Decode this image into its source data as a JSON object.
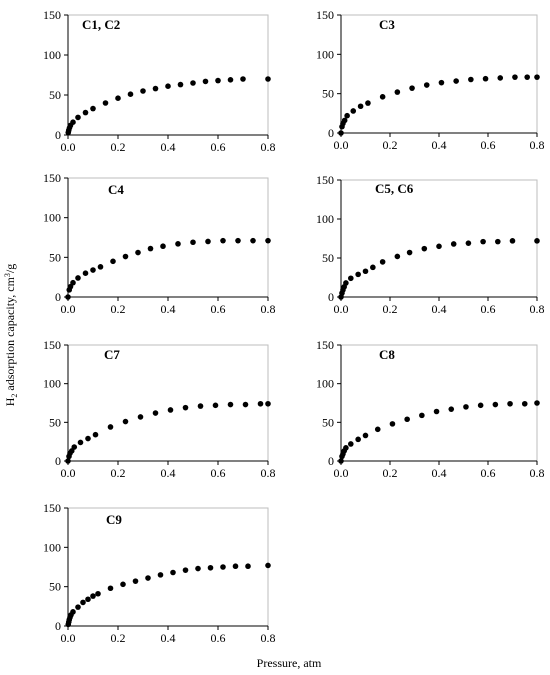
{
  "figure": {
    "ylabel_main": "H",
    "ylabel_sub": "2",
    "ylabel_rest": " adsorption capacity, cm",
    "ylabel_sup": "3",
    "ylabel_end": "/g",
    "xlabel": "Pressure, atm"
  },
  "chart_data": [
    {
      "type": "scatter",
      "title": "C1, C2",
      "xlim": [
        0,
        0.8
      ],
      "ylim": [
        0,
        150
      ],
      "xticks": [
        "0.0",
        "0.2",
        "0.4",
        "0.6",
        "0.8"
      ],
      "yticks": [
        "0",
        "50",
        "100",
        "150"
      ],
      "x": [
        0.001,
        0.003,
        0.006,
        0.01,
        0.02,
        0.04,
        0.07,
        0.1,
        0.15,
        0.2,
        0.25,
        0.3,
        0.35,
        0.4,
        0.45,
        0.5,
        0.55,
        0.6,
        0.65,
        0.7,
        0.8
      ],
      "y": [
        3,
        6,
        9,
        12,
        16,
        22,
        28,
        33,
        40,
        46,
        51,
        55,
        58,
        61,
        63,
        65,
        67,
        68,
        69,
        70,
        70
      ]
    },
    {
      "type": "scatter",
      "title": "C3",
      "xlim": [
        0,
        0.8
      ],
      "ylim": [
        0,
        150
      ],
      "xticks": [
        "0.0",
        "0.2",
        "0.4",
        "0.6",
        "0.8"
      ],
      "yticks": [
        "0",
        "50",
        "100",
        "150"
      ],
      "x": [
        0.0,
        0.004,
        0.008,
        0.015,
        0.025,
        0.05,
        0.08,
        0.11,
        0.17,
        0.23,
        0.29,
        0.35,
        0.41,
        0.47,
        0.53,
        0.59,
        0.65,
        0.71,
        0.76,
        0.8
      ],
      "y": [
        0,
        8,
        12,
        16,
        22,
        28,
        34,
        38,
        46,
        52,
        57,
        61,
        64,
        66,
        68,
        69,
        70,
        71,
        71,
        71
      ]
    },
    {
      "type": "scatter",
      "title": "C4",
      "xlim": [
        0,
        0.8
      ],
      "ylim": [
        0,
        150
      ],
      "xticks": [
        "0.0",
        "0.2",
        "0.4",
        "0.6",
        "0.8"
      ],
      "yticks": [
        "0",
        "50",
        "100",
        "150"
      ],
      "x": [
        0.0,
        0.005,
        0.01,
        0.02,
        0.04,
        0.07,
        0.1,
        0.13,
        0.18,
        0.23,
        0.28,
        0.33,
        0.38,
        0.44,
        0.5,
        0.56,
        0.62,
        0.68,
        0.74,
        0.8
      ],
      "y": [
        0,
        9,
        13,
        18,
        24,
        30,
        34,
        38,
        45,
        51,
        56,
        61,
        64,
        67,
        69,
        70,
        71,
        71,
        71,
        71
      ]
    },
    {
      "type": "scatter",
      "title": "C5, C6",
      "xlim": [
        0,
        0.8
      ],
      "ylim": [
        0,
        150
      ],
      "xticks": [
        "0.0",
        "0.2",
        "0.4",
        "0.6",
        "0.8"
      ],
      "yticks": [
        "0",
        "50",
        "100",
        "150"
      ],
      "x": [
        0.0,
        0.004,
        0.008,
        0.013,
        0.02,
        0.04,
        0.07,
        0.1,
        0.13,
        0.17,
        0.23,
        0.28,
        0.34,
        0.4,
        0.46,
        0.52,
        0.58,
        0.64,
        0.7,
        0.8
      ],
      "y": [
        0,
        5,
        9,
        13,
        18,
        24,
        29,
        33,
        38,
        45,
        52,
        57,
        62,
        65,
        68,
        69,
        71,
        71,
        72,
        72
      ]
    },
    {
      "type": "scatter",
      "title": "C7",
      "xlim": [
        0,
        0.8
      ],
      "ylim": [
        0,
        150
      ],
      "xticks": [
        "0.0",
        "0.2",
        "0.4",
        "0.6",
        "0.8"
      ],
      "yticks": [
        "0",
        "50",
        "100",
        "150"
      ],
      "x": [
        0.0,
        0.004,
        0.008,
        0.015,
        0.025,
        0.05,
        0.08,
        0.11,
        0.17,
        0.23,
        0.29,
        0.35,
        0.41,
        0.47,
        0.53,
        0.59,
        0.65,
        0.71,
        0.77,
        0.8
      ],
      "y": [
        0,
        6,
        10,
        13,
        18,
        24,
        29,
        34,
        44,
        51,
        57,
        62,
        66,
        69,
        71,
        72,
        73,
        73,
        74,
        74
      ]
    },
    {
      "type": "scatter",
      "title": "C8",
      "xlim": [
        0,
        0.8
      ],
      "ylim": [
        0,
        150
      ],
      "xticks": [
        "0.0",
        "0.2",
        "0.4",
        "0.6",
        "0.8"
      ],
      "yticks": [
        "0",
        "50",
        "100",
        "150"
      ],
      "x": [
        0.0,
        0.004,
        0.008,
        0.013,
        0.02,
        0.04,
        0.07,
        0.1,
        0.15,
        0.21,
        0.27,
        0.33,
        0.39,
        0.45,
        0.51,
        0.57,
        0.63,
        0.69,
        0.75,
        0.8
      ],
      "y": [
        0,
        6,
        9,
        13,
        17,
        22,
        28,
        33,
        41,
        48,
        54,
        59,
        64,
        67,
        70,
        72,
        73,
        74,
        74,
        75
      ]
    },
    {
      "type": "scatter",
      "title": "C9",
      "xlim": [
        0,
        0.8
      ],
      "ylim": [
        0,
        150
      ],
      "xticks": [
        "0.0",
        "0.2",
        "0.4",
        "0.6",
        "0.8"
      ],
      "yticks": [
        "0",
        "50",
        "100",
        "150"
      ],
      "x": [
        0.001,
        0.003,
        0.005,
        0.008,
        0.012,
        0.02,
        0.04,
        0.06,
        0.08,
        0.1,
        0.12,
        0.17,
        0.22,
        0.27,
        0.32,
        0.37,
        0.42,
        0.47,
        0.52,
        0.57,
        0.62,
        0.67,
        0.72,
        0.8
      ],
      "y": [
        2,
        5,
        8,
        11,
        14,
        18,
        24,
        30,
        34,
        38,
        41,
        48,
        53,
        57,
        61,
        65,
        68,
        71,
        73,
        74,
        75,
        76,
        76,
        77
      ]
    }
  ]
}
